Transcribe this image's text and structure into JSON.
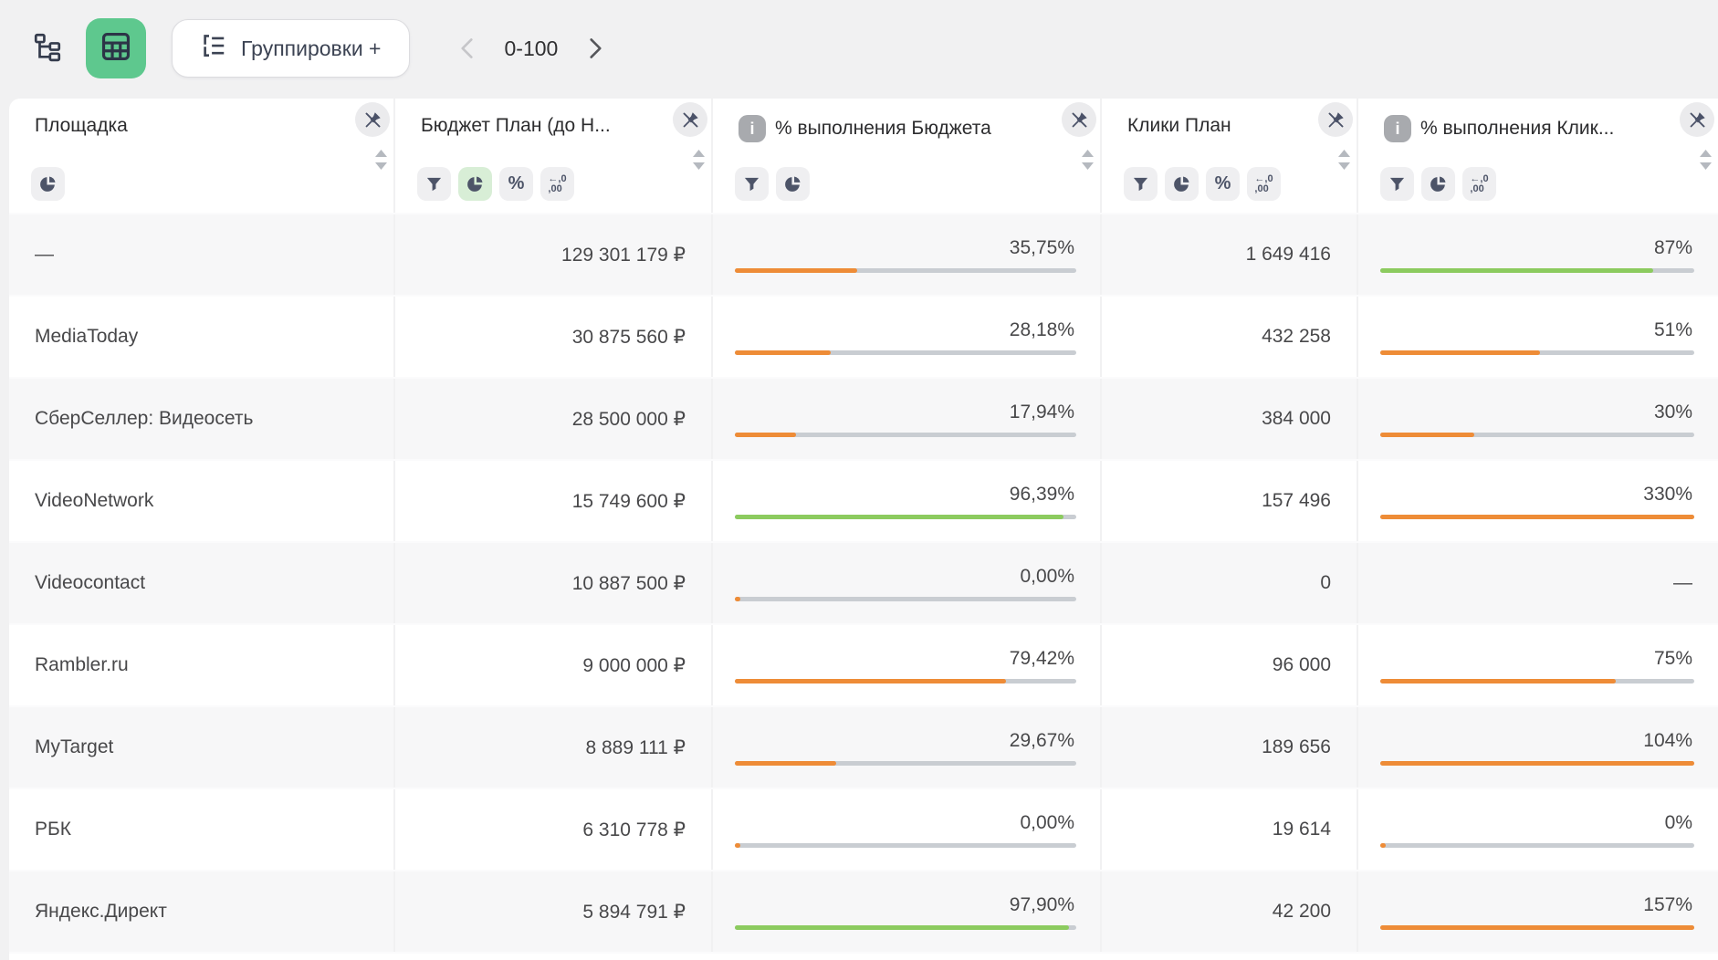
{
  "toolbar": {
    "tree_view_icon": "tree-structure-icon",
    "table_view_icon": "table-grid-icon",
    "group_button_label": "Группировки +",
    "pagination": {
      "range": "0-100",
      "prev": "‹",
      "next": "›"
    }
  },
  "icon_labels": {
    "percent": "%",
    "decimals_top": "←,0",
    "decimals_bottom": ",00",
    "info": "i"
  },
  "colors": {
    "accent_green_button": "#5ec88e",
    "icon_active_bg": "#d8eed6",
    "bar_orange": "#ee8c37",
    "bar_green": "#8ccb5f",
    "bar_track": "#c9cdd2",
    "row_alt_bg": "#f7f7f8"
  },
  "table": {
    "columns": [
      {
        "title": "Площадка",
        "info": false,
        "icons": [
          {
            "name": "pie",
            "active": false
          }
        ]
      },
      {
        "title": "Бюджет План (до Н...",
        "info": false,
        "icons": [
          {
            "name": "filter",
            "active": false
          },
          {
            "name": "pie",
            "active": true
          },
          {
            "name": "percent",
            "active": false
          },
          {
            "name": "decimals",
            "active": false
          }
        ]
      },
      {
        "title": "% выполнения Бюджета",
        "info": true,
        "icons": [
          {
            "name": "filter",
            "active": false
          },
          {
            "name": "pie",
            "active": false
          }
        ]
      },
      {
        "title": "Клики План",
        "info": false,
        "icons": [
          {
            "name": "filter",
            "active": false
          },
          {
            "name": "pie",
            "active": false
          },
          {
            "name": "percent",
            "active": false
          },
          {
            "name": "decimals",
            "active": false
          }
        ]
      },
      {
        "title": "% выполнения Клик...",
        "info": true,
        "icons": [
          {
            "name": "filter",
            "active": false
          },
          {
            "name": "pie",
            "active": false
          },
          {
            "name": "decimals",
            "active": false
          }
        ]
      }
    ],
    "rows": [
      {
        "platform": "—",
        "budget": "129 301 179 ₽",
        "budget_pct": {
          "label": "35,75%",
          "fill": 35.75,
          "color": "orange"
        },
        "clicks": "1 649 416",
        "clicks_pct": {
          "label": "87%",
          "fill": 87,
          "color": "green"
        }
      },
      {
        "platform": "MediaToday",
        "budget": "30 875 560 ₽",
        "budget_pct": {
          "label": "28,18%",
          "fill": 28.18,
          "color": "orange"
        },
        "clicks": "432 258",
        "clicks_pct": {
          "label": "51%",
          "fill": 51,
          "color": "orange"
        }
      },
      {
        "platform": "СберСеллер: Видеосеть",
        "budget": "28 500 000 ₽",
        "budget_pct": {
          "label": "17,94%",
          "fill": 17.94,
          "color": "orange"
        },
        "clicks": "384 000",
        "clicks_pct": {
          "label": "30%",
          "fill": 30,
          "color": "orange"
        }
      },
      {
        "platform": "VideoNetwork",
        "budget": "15 749 600 ₽",
        "budget_pct": {
          "label": "96,39%",
          "fill": 96.39,
          "color": "green"
        },
        "clicks": "157 496",
        "clicks_pct": {
          "label": "330%",
          "fill": 100,
          "color": "orange"
        }
      },
      {
        "platform": "Videocontact",
        "budget": "10 887 500 ₽",
        "budget_pct": {
          "label": "0,00%",
          "fill": 0,
          "color": "orange"
        },
        "clicks": "0",
        "clicks_pct": {
          "label": "—",
          "fill": null,
          "color": null
        }
      },
      {
        "platform": "Rambler.ru",
        "budget": "9 000 000 ₽",
        "budget_pct": {
          "label": "79,42%",
          "fill": 79.42,
          "color": "orange"
        },
        "clicks": "96 000",
        "clicks_pct": {
          "label": "75%",
          "fill": 75,
          "color": "orange"
        }
      },
      {
        "platform": "MyTarget",
        "budget": "8 889 111 ₽",
        "budget_pct": {
          "label": "29,67%",
          "fill": 29.67,
          "color": "orange"
        },
        "clicks": "189 656",
        "clicks_pct": {
          "label": "104%",
          "fill": 100,
          "color": "orange"
        }
      },
      {
        "platform": "РБК",
        "budget": "6 310 778 ₽",
        "budget_pct": {
          "label": "0,00%",
          "fill": 0,
          "color": "orange"
        },
        "clicks": "19 614",
        "clicks_pct": {
          "label": "0%",
          "fill": 0,
          "color": "orange"
        }
      },
      {
        "platform": "Яндекс.Директ",
        "budget": "5 894 791 ₽",
        "budget_pct": {
          "label": "97,90%",
          "fill": 97.9,
          "color": "green"
        },
        "clicks": "42 200",
        "clicks_pct": {
          "label": "157%",
          "fill": 100,
          "color": "orange"
        }
      }
    ]
  }
}
